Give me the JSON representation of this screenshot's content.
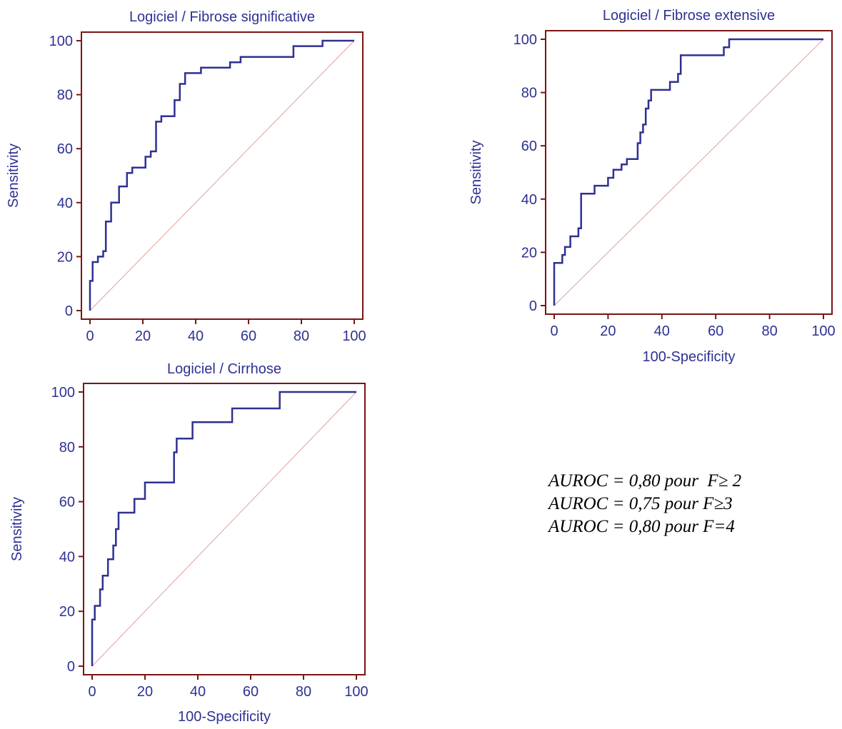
{
  "colors": {
    "frame": "#7a1414",
    "curve": "#2e3192",
    "diagonal": "#e0a0a0",
    "text": "#2e3192"
  },
  "chart_data": [
    {
      "type": "line",
      "title": "Logiciel / Fibrose significative",
      "xlabel": "",
      "ylabel": "Sensitivity",
      "xlim": [
        0,
        100
      ],
      "ylim": [
        0,
        100
      ],
      "xticks": [
        0,
        20,
        40,
        60,
        80,
        100
      ],
      "yticks": [
        0,
        20,
        40,
        60,
        80,
        100
      ],
      "grid": false,
      "diagonal": true,
      "series": [
        {
          "x": [
            0,
            0,
            1,
            1,
            3,
            3,
            5,
            5,
            6,
            6,
            8,
            8,
            11,
            11,
            14,
            14,
            16,
            16,
            21,
            21,
            23,
            23,
            25,
            25,
            27,
            27,
            32,
            32,
            34,
            34,
            36,
            36,
            42,
            42,
            53,
            53,
            57,
            57,
            77,
            77,
            88,
            88,
            100
          ],
          "y": [
            0,
            11,
            11,
            18,
            18,
            20,
            20,
            22,
            22,
            33,
            33,
            40,
            40,
            46,
            46,
            51,
            51,
            53,
            53,
            57,
            57,
            59,
            59,
            70,
            70,
            72,
            72,
            78,
            78,
            84,
            84,
            88,
            88,
            90,
            90,
            92,
            92,
            94,
            94,
            98,
            98,
            100,
            100
          ]
        }
      ]
    },
    {
      "type": "line",
      "title": "Logiciel / Fibrose extensive",
      "xlabel": "100-Specificity",
      "ylabel": "Sensitivity",
      "xlim": [
        0,
        100
      ],
      "ylim": [
        0,
        100
      ],
      "xticks": [
        0,
        20,
        40,
        60,
        80,
        100
      ],
      "yticks": [
        0,
        20,
        40,
        60,
        80,
        100
      ],
      "grid": false,
      "diagonal": true,
      "series": [
        {
          "x": [
            0,
            0,
            3,
            3,
            4,
            4,
            6,
            6,
            8,
            8,
            9,
            9,
            10,
            10,
            15,
            15,
            20,
            20,
            22,
            22,
            25,
            25,
            27,
            27,
            31,
            31,
            32,
            32,
            33,
            33,
            34,
            34,
            35,
            35,
            36,
            36,
            39,
            39,
            43,
            43,
            46,
            46,
            47,
            47,
            63,
            63,
            65,
            65,
            100
          ],
          "y": [
            0,
            16,
            16,
            19,
            19,
            22,
            22,
            26,
            26,
            26,
            26,
            29,
            29,
            42,
            42,
            45,
            45,
            48,
            48,
            51,
            51,
            53,
            53,
            55,
            55,
            61,
            61,
            65,
            65,
            68,
            68,
            74,
            74,
            77,
            77,
            81,
            81,
            81,
            81,
            84,
            84,
            87,
            87,
            94,
            94,
            97,
            97,
            100,
            100
          ]
        }
      ]
    },
    {
      "type": "line",
      "title": "Logiciel / Cirrhose",
      "xlabel": "100-Specificity",
      "ylabel": "Sensitivity",
      "xlim": [
        0,
        100
      ],
      "ylim": [
        0,
        100
      ],
      "xticks": [
        0,
        20,
        40,
        60,
        80,
        100
      ],
      "yticks": [
        0,
        20,
        40,
        60,
        80,
        100
      ],
      "grid": false,
      "diagonal": true,
      "series": [
        {
          "x": [
            0,
            0,
            1,
            1,
            3,
            3,
            4,
            4,
            6,
            6,
            8,
            8,
            9,
            9,
            10,
            10,
            16,
            16,
            20,
            20,
            31,
            31,
            32,
            32,
            38,
            38,
            53,
            53,
            56,
            56,
            71,
            71,
            100
          ],
          "y": [
            0,
            17,
            17,
            22,
            22,
            28,
            28,
            33,
            33,
            39,
            39,
            44,
            44,
            50,
            50,
            56,
            56,
            61,
            61,
            67,
            67,
            78,
            78,
            83,
            83,
            89,
            89,
            94,
            94,
            94,
            94,
            100,
            100
          ]
        }
      ]
    }
  ],
  "annotations": [
    "AUROC = 0,80 pour  F≥ 2",
    "AUROC = 0,75 pour F≥3",
    "AUROC = 0,80 pour F=4"
  ]
}
